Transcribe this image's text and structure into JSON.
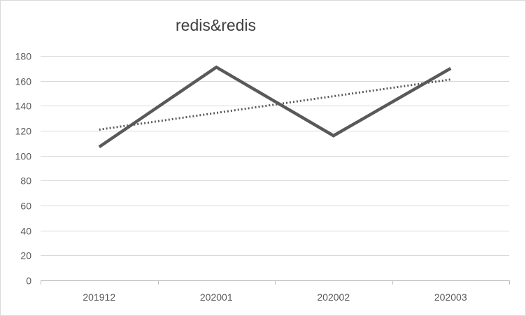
{
  "chart_data": {
    "type": "line",
    "title": "redis&redis",
    "categories": [
      "201912",
      "202001",
      "202002",
      "202003"
    ],
    "series": [
      {
        "values": [
          107,
          171,
          116,
          170
        ],
        "color": "#595959",
        "style": "solid"
      }
    ],
    "trendline": {
      "type": "linear",
      "color": "#595959",
      "style": "dotted"
    },
    "ylim": [
      0,
      180
    ],
    "yticks": [
      0,
      20,
      40,
      60,
      80,
      100,
      120,
      140,
      160,
      180
    ],
    "grid": true,
    "legend": "none"
  }
}
